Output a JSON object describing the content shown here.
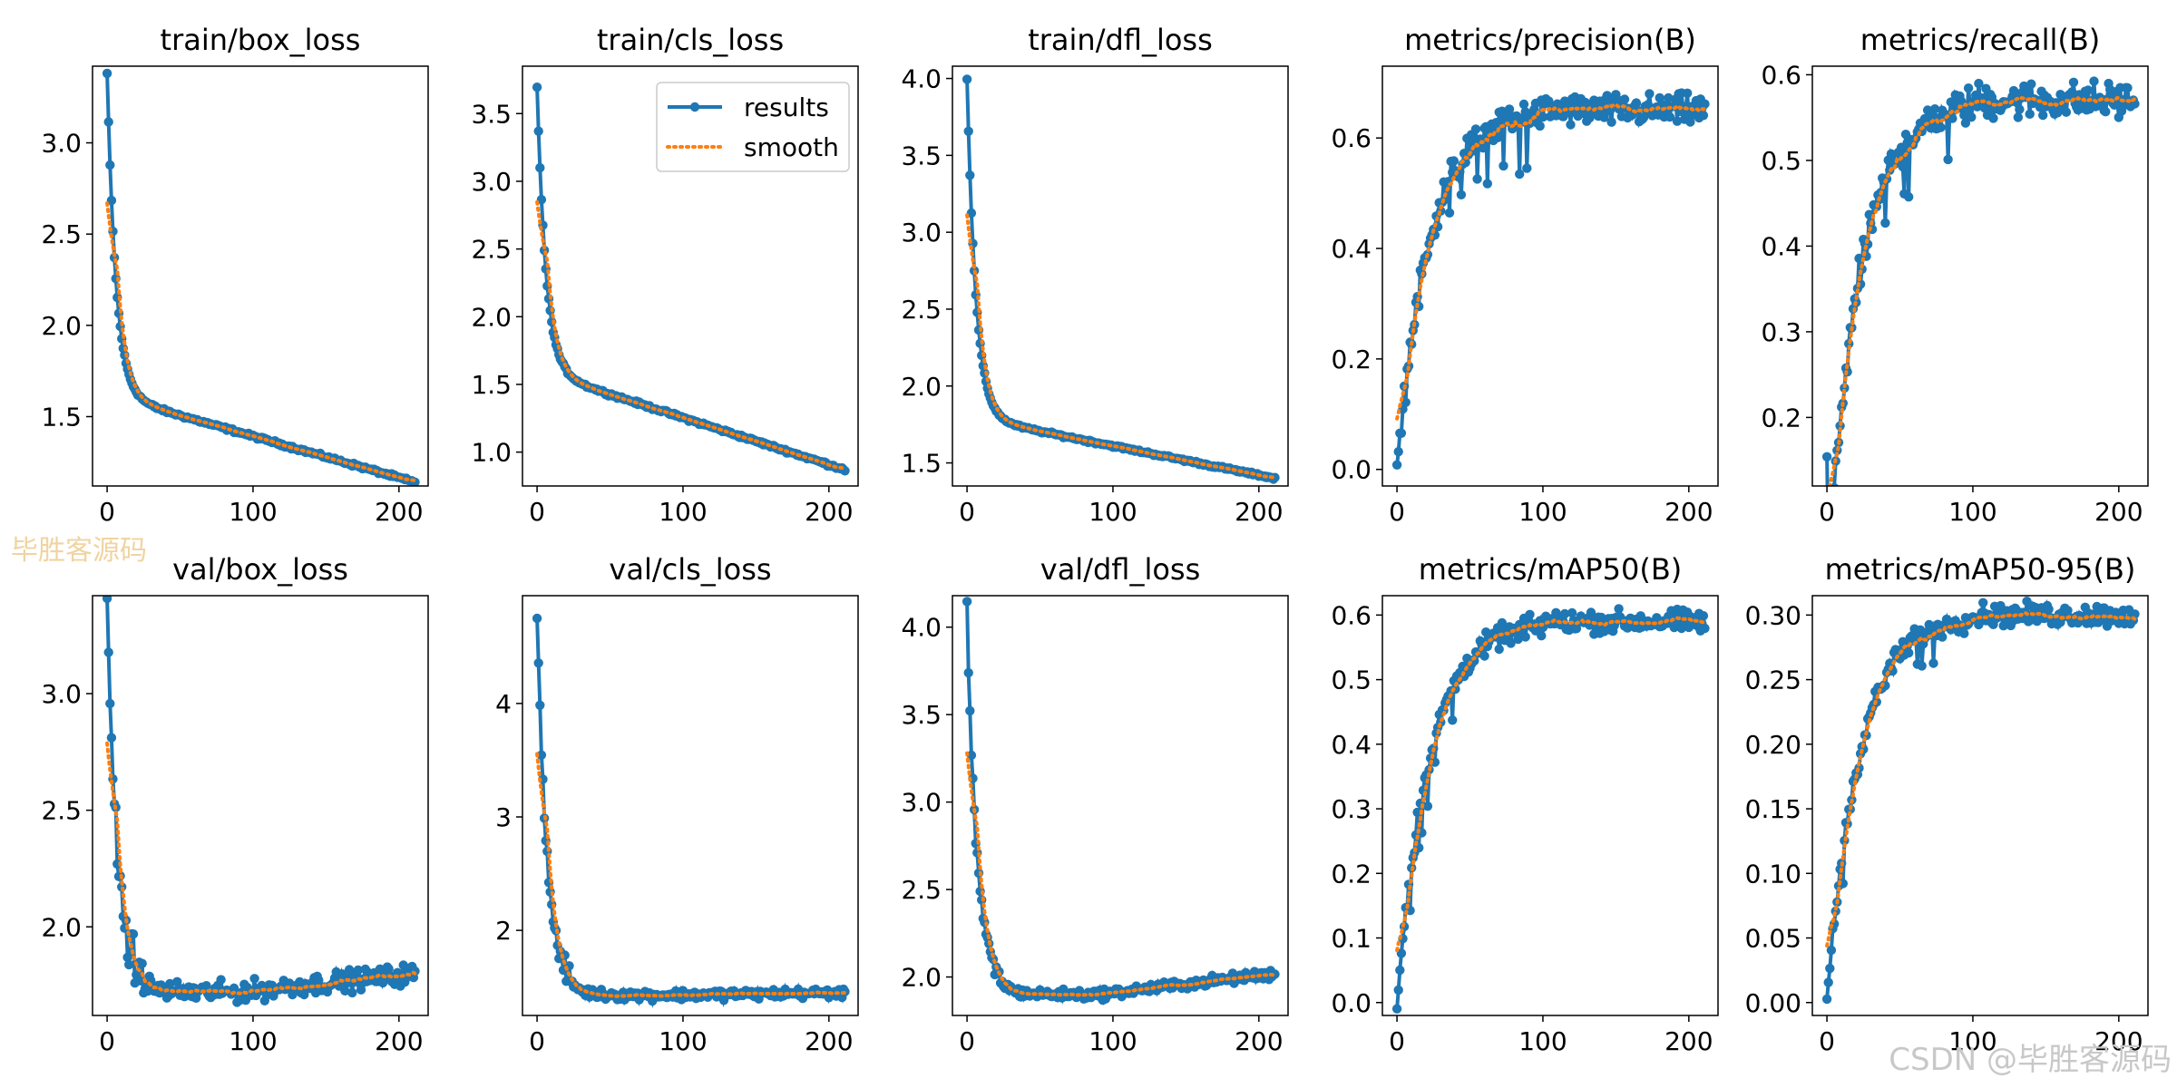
{
  "figure": {
    "series_color": "#1f77b4",
    "smooth_color": "#ff7f0e",
    "legend_results": "results",
    "legend_smooth": "smooth"
  },
  "watermarks": {
    "left": "毕胜客源码",
    "right": "CSDN @毕胜客源码"
  },
  "chart_data": [
    {
      "type": "line",
      "title": "train/box_loss",
      "xlim": [
        -10,
        220
      ],
      "ylim": [
        1.12,
        3.42
      ],
      "xticks": [
        0,
        100,
        200
      ],
      "yticks": [
        1.5,
        2.0,
        2.5,
        3.0
      ],
      "ytick_labels": [
        "1.5",
        "2.0",
        "2.5",
        "3.0"
      ],
      "y_start": 3.38,
      "y_mid": 1.62,
      "y_end": 1.14,
      "noise": 0.006,
      "legend": false,
      "shape": "exp"
    },
    {
      "type": "line",
      "title": "train/cls_loss",
      "xlim": [
        -10,
        220
      ],
      "ylim": [
        0.75,
        3.85
      ],
      "xticks": [
        0,
        100,
        200
      ],
      "yticks": [
        1.0,
        1.5,
        2.0,
        2.5,
        3.0,
        3.5
      ],
      "ytick_labels": [
        "1.0",
        "1.5",
        "2.0",
        "2.5",
        "3.0",
        "3.5"
      ],
      "y_start": 3.7,
      "y_mid": 1.6,
      "y_end": 0.87,
      "noise": 0.008,
      "legend": true,
      "shape": "exp"
    },
    {
      "type": "line",
      "title": "train/dfl_loss",
      "xlim": [
        -10,
        220
      ],
      "ylim": [
        1.35,
        4.08
      ],
      "xticks": [
        0,
        100,
        200
      ],
      "yticks": [
        1.5,
        2.0,
        2.5,
        3.0,
        3.5,
        4.0
      ],
      "ytick_labels": [
        "1.5",
        "2.0",
        "2.5",
        "3.0",
        "3.5",
        "4.0"
      ],
      "y_start": 4.0,
      "y_mid": 1.8,
      "y_end": 1.4,
      "noise": 0.006,
      "legend": false,
      "shape": "exp"
    },
    {
      "type": "line",
      "title": "metrics/precision(B)",
      "xlim": [
        -10,
        220
      ],
      "ylim": [
        -0.03,
        0.73
      ],
      "xticks": [
        0,
        100,
        200
      ],
      "yticks": [
        0.0,
        0.2,
        0.4,
        0.6
      ],
      "ytick_labels": [
        "0.0",
        "0.2",
        "0.4",
        "0.6"
      ],
      "y_start": 0.0,
      "y_plateau": 0.65,
      "noise": 0.02,
      "legend": false,
      "shape": "rise"
    },
    {
      "type": "line",
      "title": "metrics/recall(B)",
      "xlim": [
        -10,
        220
      ],
      "ylim": [
        0.12,
        0.61
      ],
      "xticks": [
        0,
        100,
        200
      ],
      "yticks": [
        0.2,
        0.3,
        0.4,
        0.5,
        0.6
      ],
      "ytick_labels": [
        "0.2",
        "0.3",
        "0.4",
        "0.5",
        "0.6"
      ],
      "y_start": 0.15,
      "y_plateau": 0.57,
      "noise": 0.015,
      "legend": false,
      "shape": "rise"
    },
    {
      "type": "line",
      "title": "val/box_loss",
      "xlim": [
        -10,
        220
      ],
      "ylim": [
        1.62,
        3.42
      ],
      "xticks": [
        0,
        100,
        200
      ],
      "yticks": [
        2.0,
        2.5,
        3.0
      ],
      "ytick_labels": [
        "2.0",
        "2.5",
        "3.0"
      ],
      "y_start": 3.38,
      "y_min": 1.72,
      "y_end": 1.8,
      "noise": 0.03,
      "legend": false,
      "shape": "dip"
    },
    {
      "type": "line",
      "title": "val/cls_loss",
      "xlim": [
        -10,
        220
      ],
      "ylim": [
        1.25,
        4.95
      ],
      "xticks": [
        0,
        100,
        200
      ],
      "yticks": [
        2,
        3,
        4
      ],
      "ytick_labels": [
        "2",
        "3",
        "4"
      ],
      "y_start": 4.75,
      "y_min": 1.43,
      "y_end": 1.45,
      "noise": 0.03,
      "legend": false,
      "shape": "dip"
    },
    {
      "type": "line",
      "title": "val/dfl_loss",
      "xlim": [
        -10,
        220
      ],
      "ylim": [
        1.78,
        4.18
      ],
      "xticks": [
        0,
        100,
        200
      ],
      "yticks": [
        2.0,
        2.5,
        3.0,
        3.5,
        4.0
      ],
      "ytick_labels": [
        "2.0",
        "2.5",
        "3.0",
        "3.5",
        "4.0"
      ],
      "y_start": 4.08,
      "y_min": 1.9,
      "y_end": 2.02,
      "noise": 0.02,
      "legend": false,
      "shape": "dip"
    },
    {
      "type": "line",
      "title": "metrics/mAP50(B)",
      "xlim": [
        -10,
        220
      ],
      "ylim": [
        -0.02,
        0.63
      ],
      "xticks": [
        0,
        100,
        200
      ],
      "yticks": [
        0.0,
        0.1,
        0.2,
        0.3,
        0.4,
        0.5,
        0.6
      ],
      "ytick_labels": [
        "0.0",
        "0.1",
        "0.2",
        "0.3",
        "0.4",
        "0.5",
        "0.6"
      ],
      "y_start": 0.0,
      "y_plateau": 0.59,
      "noise": 0.012,
      "legend": false,
      "shape": "rise"
    },
    {
      "type": "line",
      "title": "metrics/mAP50-95(B)",
      "xlim": [
        -10,
        220
      ],
      "ylim": [
        -0.01,
        0.315
      ],
      "xticks": [
        0,
        100,
        200
      ],
      "yticks": [
        0.0,
        0.05,
        0.1,
        0.15,
        0.2,
        0.25,
        0.3
      ],
      "ytick_labels": [
        "0.00",
        "0.05",
        "0.10",
        "0.15",
        "0.20",
        "0.25",
        "0.30"
      ],
      "y_start": 0.0,
      "y_plateau": 0.3,
      "noise": 0.006,
      "legend": false,
      "shape": "rise"
    }
  ]
}
